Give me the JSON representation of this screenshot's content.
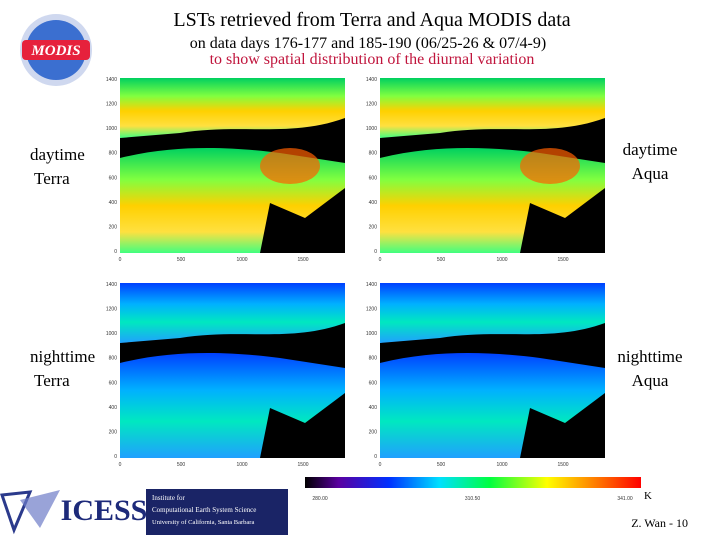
{
  "header": {
    "title": "LSTs retrieved from Terra and Aqua MODIS data",
    "subtitle": "on data days 176-177 and 185-190 (06/25-26 & 07/4-9)",
    "note": "to show spatial distribution of the diurnal variation"
  },
  "logos": {
    "modis": "MODIS",
    "icess": "ICESS",
    "institute": [
      "Institute for",
      "Computational Earth System Science",
      "University of California, Santa Barbara"
    ]
  },
  "panels": [
    {
      "label": [
        "daytime",
        "Terra"
      ],
      "time": "day",
      "yticks": [
        1400,
        1200,
        1000,
        800,
        600,
        400,
        200,
        0
      ],
      "xticks": [
        0,
        500,
        1000,
        1500
      ]
    },
    {
      "label": [
        "daytime",
        "Aqua"
      ],
      "time": "day",
      "yticks": [
        1400,
        1200,
        1000,
        800,
        600,
        400,
        200,
        0
      ],
      "xticks": [
        0,
        500,
        1000,
        1500
      ]
    },
    {
      "label": [
        "nighttime",
        "Terra"
      ],
      "time": "night",
      "yticks": [
        1400,
        1200,
        1000,
        800,
        600,
        400,
        200,
        0
      ],
      "xticks": [
        0,
        500,
        1000,
        1500
      ]
    },
    {
      "label": [
        "nighttime",
        "Aqua"
      ],
      "time": "night",
      "yticks": [
        1400,
        1200,
        1000,
        800,
        600,
        400,
        200,
        0
      ],
      "xticks": [
        0,
        500,
        1000,
        1500
      ]
    }
  ],
  "colorbar": {
    "ticks": [
      "280.00",
      "310.50",
      "341.00"
    ],
    "unit": "K"
  },
  "footer": "Z. Wan - 10"
}
